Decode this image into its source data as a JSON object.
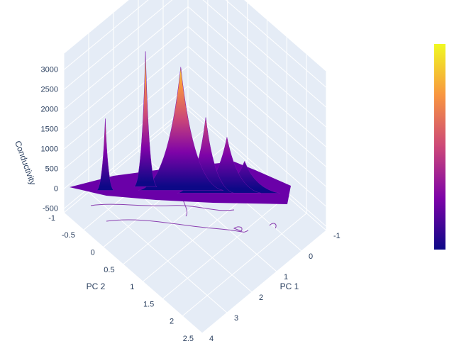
{
  "chart_data": {
    "type": "surface",
    "zaxis_title": "Conductivity",
    "xaxis_title": "PC 1",
    "yaxis_title": "PC 2",
    "zlim": [
      -600,
      3400
    ],
    "zticks": [
      -500,
      0,
      500,
      1000,
      1500,
      2000,
      2500,
      3000
    ],
    "xlim": [
      -1,
      4
    ],
    "xticks": [
      -1,
      0,
      1,
      2,
      3,
      4
    ],
    "ylim": [
      -1,
      2.5
    ],
    "yticks": [
      -1,
      -0.5,
      0,
      0.5,
      1,
      1.5,
      2,
      2.5
    ],
    "grid": true,
    "peaks": {
      "pc1": [
        0.27,
        0.63,
        1.07,
        1.52,
        2.16,
        3.08
      ],
      "pc2": [
        1.23,
        1.01,
        0.75,
        0.4,
        -0.09,
        -0.53
      ],
      "z": [
        700,
        1300,
        1800,
        3000,
        3300,
        1700
      ]
    },
    "colorscale": [
      "#0d0887",
      "#7e03a8",
      "#cc4778",
      "#f89540",
      "#f0f921"
    ]
  }
}
